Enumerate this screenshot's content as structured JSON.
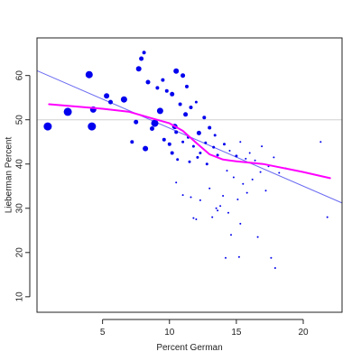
{
  "chart_data": {
    "type": "scatter",
    "title": "",
    "xlabel": "Percent German",
    "ylabel": "Lieberman Percent",
    "xlim": [
      0.1,
      22.9
    ],
    "ylim": [
      6.5,
      68.5
    ],
    "x_ticks": [
      5,
      10,
      15,
      20
    ],
    "y_ticks": [
      10,
      20,
      30,
      40,
      50,
      60
    ],
    "grid": false,
    "legend": "none",
    "colors": {
      "points": "#0000ee",
      "fit_line": "#6b6bf2",
      "smooth": "#ff00ff",
      "reference": "#d0d0d0",
      "axes": "#222222"
    },
    "reference_line": {
      "y": 50
    },
    "fit_line": {
      "x": [
        0.1,
        22.9
      ],
      "y": [
        61.1,
        31.2
      ]
    },
    "smooth_curve": {
      "x": [
        1.0,
        3.0,
        5.0,
        7.0,
        8.5,
        10.0,
        11.0,
        12.0,
        13.0,
        14.0,
        15.0,
        16.0,
        17.0,
        18.0,
        19.0,
        20.0,
        21.0,
        22.0
      ],
      "y": [
        53.5,
        53.0,
        52.5,
        51.8,
        50.5,
        49.2,
        47.5,
        44.8,
        42.2,
        41.0,
        40.6,
        40.3,
        40.0,
        39.4,
        38.8,
        38.2,
        37.5,
        36.8
      ]
    },
    "series": [
      {
        "x": [
          0.9,
          2.4,
          4.2,
          4.0,
          4.3,
          5.3,
          6.6,
          5.6,
          7.7,
          7.9,
          8.1,
          8.4,
          9.1,
          9.5,
          9.8,
          10.2,
          10.5,
          10.8,
          11.0,
          11.3,
          11.6,
          12.0,
          8.9,
          9.3,
          10.4,
          11.2,
          12.2,
          12.6,
          13.0,
          13.4,
          7.2,
          7.5,
          8.2,
          8.7,
          9.6,
          10.0,
          10.5,
          11.0,
          11.4,
          11.8,
          12.3,
          12.7,
          13.3,
          10.2,
          10.6,
          11.5,
          12.1,
          12.8,
          13.6,
          14.1,
          14.5,
          15.0,
          15.3,
          15.7,
          16.0,
          16.4,
          16.9,
          17.4,
          17.8,
          18.2,
          14.3,
          14.8,
          15.5,
          16.2,
          16.8,
          17.2,
          13.8,
          14.4,
          15.1,
          15.8,
          10.5,
          11.0,
          11.6,
          12.3,
          13.0,
          13.5,
          14.0,
          12.0,
          13.2,
          14.6,
          15.3,
          16.6,
          17.6,
          17.9,
          15.2,
          14.2,
          11.8,
          13.6,
          21.3,
          21.8,
          18.7
        ],
        "y": [
          48.5,
          51.8,
          48.5,
          60.2,
          52.3,
          55.4,
          54.6,
          54.0,
          61.5,
          63.8,
          65.2,
          58.5,
          57.2,
          59.0,
          56.5,
          55.8,
          61.0,
          53.5,
          60.0,
          57.5,
          52.8,
          54.0,
          49.2,
          52.0,
          48.5,
          51.2,
          47.0,
          50.5,
          48.2,
          46.5,
          45.0,
          49.5,
          43.5,
          48.0,
          45.5,
          44.5,
          47.2,
          45.0,
          46.0,
          44.0,
          42.5,
          44.8,
          43.8,
          42.5,
          41.0,
          40.5,
          41.5,
          40.0,
          42.0,
          44.5,
          43.0,
          41.8,
          45.0,
          41.2,
          42.5,
          40.8,
          44.0,
          39.5,
          41.5,
          38.0,
          38.5,
          37.0,
          35.5,
          36.5,
          38.2,
          34.0,
          30.5,
          29.0,
          32.0,
          33.5,
          35.8,
          33.0,
          32.5,
          31.8,
          34.5,
          30.0,
          32.8,
          27.5,
          28.0,
          24.0,
          26.5,
          23.5,
          18.8,
          16.5,
          19.0,
          18.8,
          27.8,
          29.5,
          45.0,
          28.0,
          39.0
        ],
        "size": [
          9,
          9,
          9,
          8,
          7,
          6,
          7,
          5,
          6,
          5,
          4,
          5,
          4,
          4,
          4,
          5,
          6,
          4,
          5,
          4,
          4,
          3,
          8,
          7,
          6,
          5,
          5,
          4,
          4,
          3,
          4,
          5,
          6,
          5,
          4,
          4,
          4,
          3,
          3,
          3,
          3,
          3,
          3,
          4,
          3,
          3,
          3,
          3,
          3,
          3,
          2,
          3,
          2,
          2,
          2,
          2,
          2,
          2,
          2,
          2,
          2,
          2,
          2,
          2,
          2,
          2,
          2,
          2,
          2,
          2,
          2,
          2,
          2,
          2,
          2,
          2,
          2,
          2,
          2,
          2,
          2,
          2,
          2,
          2,
          2,
          2,
          2,
          2,
          2,
          2,
          2
        ]
      }
    ]
  }
}
